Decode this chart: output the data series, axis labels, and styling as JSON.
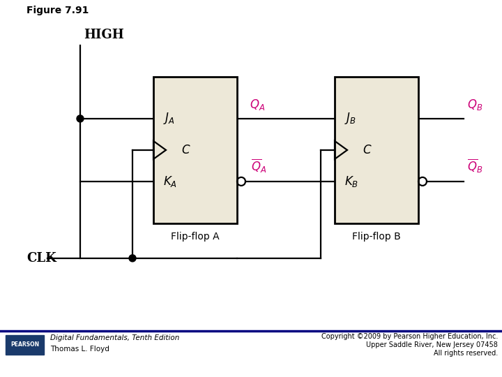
{
  "title": "Figure 7.91",
  "bg_color": "#ffffff",
  "box_fill": "#ede8d8",
  "box_edge": "#000000",
  "line_color": "#000000",
  "magenta_color": "#cc0077",
  "figure_size": [
    7.2,
    5.4
  ],
  "dpi": 100,
  "footer_line_color": "#000080",
  "pearson_bg": "#1a3a6b",
  "footer_text_left1": "Digital Fundamentals, Tenth Edition",
  "footer_text_left2": "Thomas L. Floyd",
  "footer_text_right1": "Copyright ©2009 by Pearson Higher Education, Inc.",
  "footer_text_right2": "Upper Saddle River, New Jersey 07458",
  "footer_text_right3": "All rights reserved."
}
